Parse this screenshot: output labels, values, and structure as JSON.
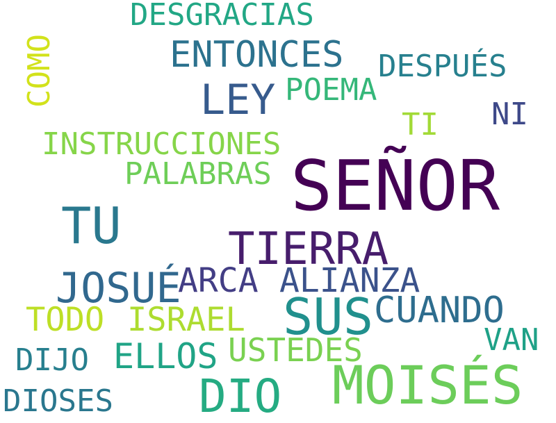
{
  "words": [
    {
      "text": "SEÑOR",
      "color": "#440154"
    },
    {
      "text": "MOISÉS",
      "color": "#6ccd5a"
    },
    {
      "text": "TIERRA",
      "color": "#471d6c"
    },
    {
      "text": "TU",
      "color": "#2a788e"
    },
    {
      "text": "SUS",
      "color": "#21908d"
    },
    {
      "text": "DIO",
      "color": "#25ab82"
    },
    {
      "text": "JOSUÉ",
      "color": "#31688e"
    },
    {
      "text": "LEY",
      "color": "#375b8d"
    },
    {
      "text": "ENTONCES",
      "color": "#2c728e"
    },
    {
      "text": "CUANDO",
      "color": "#2e6d8e"
    },
    {
      "text": "ARCA",
      "color": "#433e85"
    },
    {
      "text": "ALIANZA",
      "color": "#3b528b"
    },
    {
      "text": "TODO",
      "color": "#bddf26"
    },
    {
      "text": "ISRAEL",
      "color": "#addc30"
    },
    {
      "text": "INSTRUCCIONES",
      "color": "#86d549"
    },
    {
      "text": "PALABRAS",
      "color": "#6ece58"
    },
    {
      "text": "DESGRACIAS",
      "color": "#22a785"
    },
    {
      "text": "DESPUÉS",
      "color": "#27808e"
    },
    {
      "text": "POEMA",
      "color": "#35b779"
    },
    {
      "text": "COMO",
      "color": "#d2e21b"
    },
    {
      "text": "NI",
      "color": "#3e4989"
    },
    {
      "text": "TI",
      "color": "#a2da37"
    },
    {
      "text": "ELLOS",
      "color": "#20a486"
    },
    {
      "text": "USTEDES",
      "color": "#7ad151"
    },
    {
      "text": "DIJO",
      "color": "#277f8e"
    },
    {
      "text": "VAN",
      "color": "#1fa187"
    },
    {
      "text": "DIOSES",
      "color": "#2a778e"
    }
  ]
}
